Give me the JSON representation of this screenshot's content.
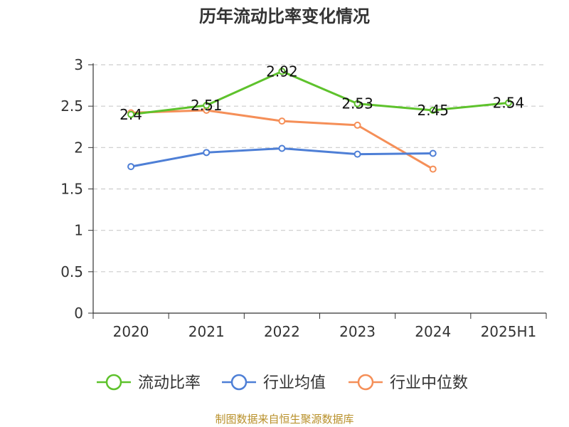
{
  "chart_data": {
    "type": "line",
    "title": "历年流动比率变化情况",
    "categories": [
      "2020",
      "2021",
      "2022",
      "2023",
      "2024",
      "2025H1"
    ],
    "ylim": [
      0,
      3
    ],
    "yticks": [
      "0",
      "0.5",
      "1",
      "1.5",
      "2",
      "2.5",
      "3"
    ],
    "grid": true,
    "legend_position": "bottom",
    "series": [
      {
        "name": "流动比率",
        "color": "#5ec22c",
        "values": [
          2.4,
          2.51,
          2.92,
          2.53,
          2.45,
          2.54
        ],
        "data_labels": [
          "2.4",
          "2.51",
          "2.92",
          "2.53",
          "2.45",
          "2.54"
        ]
      },
      {
        "name": "行业均值",
        "color": "#4e7fd6",
        "values": [
          1.77,
          1.94,
          1.99,
          1.92,
          1.93,
          null
        ]
      },
      {
        "name": "行业中位数",
        "color": "#f58f58",
        "values": [
          2.42,
          2.45,
          2.32,
          2.27,
          1.74,
          null
        ]
      }
    ]
  },
  "source": "制图数据来自恒生聚源数据库"
}
